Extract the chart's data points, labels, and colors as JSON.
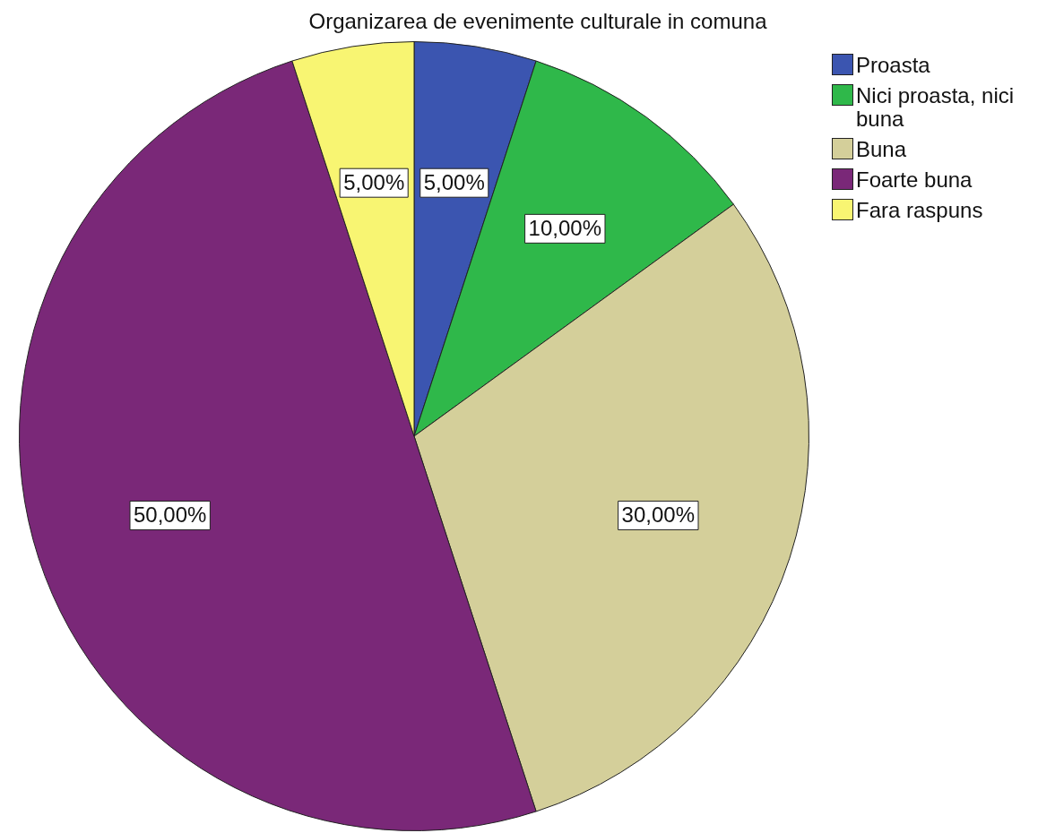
{
  "chart_data": {
    "type": "pie",
    "title": "Organizarea de evenimente culturale in comuna",
    "categories": [
      "Proasta",
      "Nici proasta, nici buna",
      "Buna",
      "Foarte buna",
      "Fara raspuns"
    ],
    "values": [
      5,
      10,
      30,
      50,
      5
    ],
    "colors": [
      "#3b55b0",
      "#2fb84a",
      "#d4cf9a",
      "#7a2878",
      "#f8f572"
    ],
    "value_labels": [
      "5,00%",
      "10,00%",
      "30,00%",
      "50,00%",
      "5,00%"
    ],
    "legend": "top right"
  }
}
